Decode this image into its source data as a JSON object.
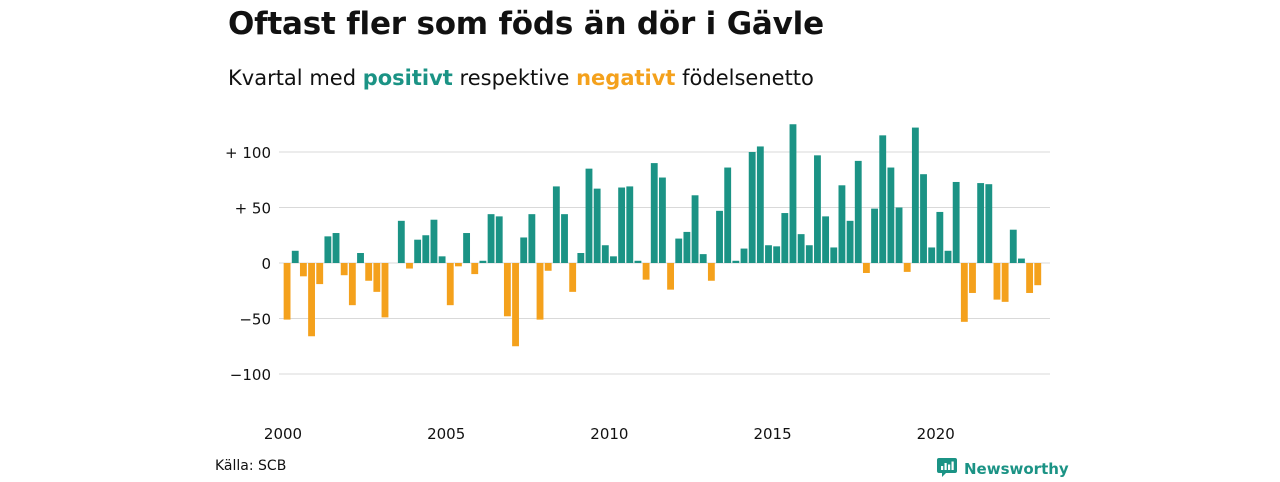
{
  "title": "Oftast fler som föds än dör i Gävle",
  "subtitle": {
    "prefix": "Kvartal med",
    "positive_word": "positivt",
    "middle": "respektive",
    "negative_word": "negativt",
    "suffix": "födelsenetto"
  },
  "source": "Källa: SCB",
  "brand": {
    "name": "Newsworthy",
    "icon": "newsworthy-logo-icon"
  },
  "colors": {
    "positive": "#1b9385",
    "negative": "#f4a11c",
    "grid": "#d9d9d9",
    "text": "#111111"
  },
  "chart_data": {
    "type": "bar",
    "xlabel": "",
    "ylabel": "",
    "ylim": [
      -120,
      128
    ],
    "xlim": [
      2000.0,
      2023.5
    ],
    "grid": true,
    "legend": "none",
    "y_ticks": [
      {
        "value": 100,
        "label": "+ 100"
      },
      {
        "value": 50,
        "label": "+  50"
      },
      {
        "value": 0,
        "label": "0"
      },
      {
        "value": -50,
        "label": "−50"
      },
      {
        "value": -100,
        "label": "−100"
      }
    ],
    "x_ticks": [
      {
        "value": 2000,
        "label": "2000"
      },
      {
        "value": 2005,
        "label": "2005"
      },
      {
        "value": 2010,
        "label": "2010"
      },
      {
        "value": 2015,
        "label": "2015"
      },
      {
        "value": 2020,
        "label": "2020"
      }
    ],
    "start_year": 2000,
    "quarters_per_year": 4,
    "series": [
      {
        "values": [
          -51,
          11,
          -12,
          -66,
          -19,
          24,
          27,
          -11,
          -38,
          9,
          -16,
          -26,
          -49,
          0,
          38,
          -5,
          21,
          25,
          39,
          6,
          -38,
          -3,
          27,
          -10,
          2,
          44,
          42,
          -48,
          -75,
          23,
          44,
          -51,
          -7,
          69,
          44,
          -26,
          9,
          85,
          67,
          16,
          6,
          68,
          69,
          2,
          -15,
          90,
          77,
          -24,
          22,
          28,
          61,
          8,
          -16,
          47,
          86,
          2,
          13,
          100,
          105,
          16,
          15,
          45,
          125,
          26,
          16,
          97,
          42,
          14,
          70,
          38,
          92,
          -9,
          49,
          115,
          86,
          50,
          -8,
          122,
          80,
          14,
          46,
          11,
          73,
          -53,
          -27,
          72,
          71,
          -33,
          -35,
          30,
          4,
          -27,
          -20
        ]
      }
    ]
  }
}
